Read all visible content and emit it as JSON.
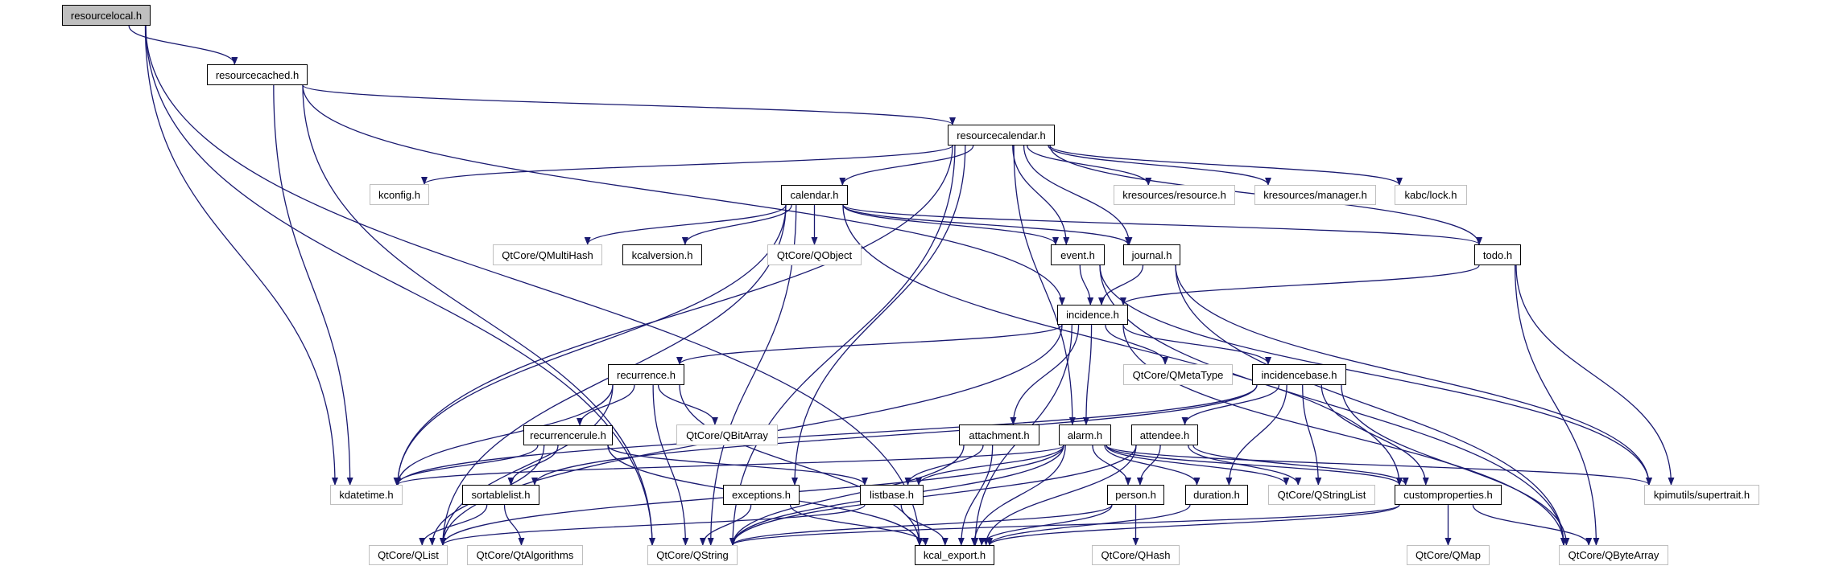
{
  "colors": {
    "edge": "#191970",
    "current_fill": "#bfbfbf",
    "external_border": "#bfbfbf",
    "documented_border": "#000000"
  },
  "nodes": [
    {
      "id": "resourcelocal",
      "label": "resourcelocal.h",
      "kind": "current"
    },
    {
      "id": "resourcecached",
      "label": "resourcecached.h",
      "kind": "documented"
    },
    {
      "id": "resourcecalendar",
      "label": "resourcecalendar.h",
      "kind": "documented"
    },
    {
      "id": "kconfig",
      "label": "kconfig.h",
      "kind": "external"
    },
    {
      "id": "calendar",
      "label": "calendar.h",
      "kind": "documented"
    },
    {
      "id": "kres_resource",
      "label": "kresources/resource.h",
      "kind": "external"
    },
    {
      "id": "kres_manager",
      "label": "kresources/manager.h",
      "kind": "external"
    },
    {
      "id": "kabc_lock",
      "label": "kabc/lock.h",
      "kind": "external"
    },
    {
      "id": "qmultihash",
      "label": "QtCore/QMultiHash",
      "kind": "external"
    },
    {
      "id": "kcalversion",
      "label": "kcalversion.h",
      "kind": "documented"
    },
    {
      "id": "qobject",
      "label": "QtCore/QObject",
      "kind": "external"
    },
    {
      "id": "event",
      "label": "event.h",
      "kind": "documented"
    },
    {
      "id": "journal",
      "label": "journal.h",
      "kind": "documented"
    },
    {
      "id": "todo",
      "label": "todo.h",
      "kind": "documented"
    },
    {
      "id": "incidence",
      "label": "incidence.h",
      "kind": "documented"
    },
    {
      "id": "recurrence",
      "label": "recurrence.h",
      "kind": "documented"
    },
    {
      "id": "qmetatype",
      "label": "QtCore/QMetaType",
      "kind": "external"
    },
    {
      "id": "incidencebase",
      "label": "incidencebase.h",
      "kind": "documented"
    },
    {
      "id": "recurrencerule",
      "label": "recurrencerule.h",
      "kind": "documented"
    },
    {
      "id": "qbitarray",
      "label": "QtCore/QBitArray",
      "kind": "external"
    },
    {
      "id": "attachment",
      "label": "attachment.h",
      "kind": "documented"
    },
    {
      "id": "alarm",
      "label": "alarm.h",
      "kind": "documented"
    },
    {
      "id": "attendee",
      "label": "attendee.h",
      "kind": "documented"
    },
    {
      "id": "kdatetime",
      "label": "kdatetime.h",
      "kind": "external"
    },
    {
      "id": "sortablelist",
      "label": "sortablelist.h",
      "kind": "documented"
    },
    {
      "id": "exceptions",
      "label": "exceptions.h",
      "kind": "documented"
    },
    {
      "id": "listbase",
      "label": "listbase.h",
      "kind": "documented"
    },
    {
      "id": "person",
      "label": "person.h",
      "kind": "documented"
    },
    {
      "id": "duration",
      "label": "duration.h",
      "kind": "documented"
    },
    {
      "id": "qstringlist",
      "label": "QtCore/QStringList",
      "kind": "external"
    },
    {
      "id": "customproperties",
      "label": "customproperties.h",
      "kind": "documented"
    },
    {
      "id": "supertrait",
      "label": "kpimutils/supertrait.h",
      "kind": "external"
    },
    {
      "id": "qlist",
      "label": "QtCore/QList",
      "kind": "external"
    },
    {
      "id": "qtalgorithms",
      "label": "QtCore/QtAlgorithms",
      "kind": "external"
    },
    {
      "id": "qstring",
      "label": "QtCore/QString",
      "kind": "external"
    },
    {
      "id": "kcal_export",
      "label": "kcal_export.h",
      "kind": "documented"
    },
    {
      "id": "qhash",
      "label": "QtCore/QHash",
      "kind": "external"
    },
    {
      "id": "qmap",
      "label": "QtCore/QMap",
      "kind": "external"
    },
    {
      "id": "qbytearray",
      "label": "QtCore/QByteArray",
      "kind": "external"
    }
  ],
  "edges": [
    [
      "resourcelocal",
      "resourcecached"
    ],
    [
      "resourcelocal",
      "kdatetime"
    ],
    [
      "resourcelocal",
      "qstring"
    ],
    [
      "resourcelocal",
      "kcal_export"
    ],
    [
      "resourcecached",
      "resourcecalendar"
    ],
    [
      "resourcecached",
      "kdatetime"
    ],
    [
      "resourcecached",
      "qstring"
    ],
    [
      "resourcecached",
      "incidence"
    ],
    [
      "resourcecalendar",
      "calendar"
    ],
    [
      "resourcecalendar",
      "kconfig"
    ],
    [
      "resourcecalendar",
      "kres_resource"
    ],
    [
      "resourcecalendar",
      "kres_manager"
    ],
    [
      "resourcecalendar",
      "kabc_lock"
    ],
    [
      "resourcecalendar",
      "todo"
    ],
    [
      "resourcecalendar",
      "event"
    ],
    [
      "resourcecalendar",
      "journal"
    ],
    [
      "resourcecalendar",
      "alarm"
    ],
    [
      "resourcecalendar",
      "exceptions"
    ],
    [
      "resourcecalendar",
      "kdatetime"
    ],
    [
      "resourcecalendar",
      "qstring"
    ],
    [
      "calendar",
      "qmultihash"
    ],
    [
      "calendar",
      "kcalversion"
    ],
    [
      "calendar",
      "qobject"
    ],
    [
      "calendar",
      "event"
    ],
    [
      "calendar",
      "journal"
    ],
    [
      "calendar",
      "todo"
    ],
    [
      "calendar",
      "kdatetime"
    ],
    [
      "calendar",
      "qlist"
    ],
    [
      "calendar",
      "qstring"
    ],
    [
      "calendar",
      "customproperties"
    ],
    [
      "event",
      "incidence"
    ],
    [
      "event",
      "supertrait"
    ],
    [
      "event",
      "qbytearray"
    ],
    [
      "journal",
      "incidence"
    ],
    [
      "journal",
      "supertrait"
    ],
    [
      "journal",
      "qbytearray"
    ],
    [
      "todo",
      "incidence"
    ],
    [
      "todo",
      "supertrait"
    ],
    [
      "todo",
      "qbytearray"
    ],
    [
      "incidence",
      "recurrence"
    ],
    [
      "incidence",
      "attachment"
    ],
    [
      "incidence",
      "alarm"
    ],
    [
      "incidence",
      "qmetatype"
    ],
    [
      "incidence",
      "incidencebase"
    ],
    [
      "incidence",
      "qlist"
    ],
    [
      "incidence",
      "kcal_export"
    ],
    [
      "incidence",
      "qbytearray"
    ],
    [
      "incidencebase",
      "kdatetime"
    ],
    [
      "incidencebase",
      "sortablelist"
    ],
    [
      "incidencebase",
      "attendee"
    ],
    [
      "incidencebase",
      "duration"
    ],
    [
      "incidencebase",
      "qstringlist"
    ],
    [
      "incidencebase",
      "customproperties"
    ],
    [
      "incidencebase",
      "qbytearray"
    ],
    [
      "recurrence",
      "recurrencerule"
    ],
    [
      "recurrence",
      "kdatetime"
    ],
    [
      "recurrence",
      "qlist"
    ],
    [
      "recurrence",
      "qstring"
    ],
    [
      "recurrence",
      "qbitarray"
    ],
    [
      "recurrence",
      "kcal_export"
    ],
    [
      "recurrencerule",
      "kdatetime"
    ],
    [
      "recurrencerule",
      "sortablelist"
    ],
    [
      "recurrencerule",
      "listbase"
    ],
    [
      "recurrencerule",
      "qlist"
    ],
    [
      "recurrencerule",
      "kcal_export"
    ],
    [
      "attachment",
      "listbase"
    ],
    [
      "attachment",
      "kcal_export"
    ],
    [
      "attachment",
      "qstring"
    ],
    [
      "alarm",
      "kdatetime"
    ],
    [
      "alarm",
      "listbase"
    ],
    [
      "alarm",
      "qstring"
    ],
    [
      "alarm",
      "kcal_export"
    ],
    [
      "alarm",
      "person"
    ],
    [
      "alarm",
      "duration"
    ],
    [
      "alarm",
      "qstringlist"
    ],
    [
      "alarm",
      "customproperties"
    ],
    [
      "alarm",
      "supertrait"
    ],
    [
      "alarm",
      "qlist"
    ],
    [
      "attendee",
      "person"
    ],
    [
      "attendee",
      "customproperties"
    ],
    [
      "attendee",
      "qstringlist"
    ],
    [
      "attendee",
      "qstring"
    ],
    [
      "attendee",
      "kcal_export"
    ],
    [
      "sortablelist",
      "qlist"
    ],
    [
      "sortablelist",
      "qtalgorithms"
    ],
    [
      "listbase",
      "qlist"
    ],
    [
      "listbase",
      "kcal_export"
    ],
    [
      "exceptions",
      "qstring"
    ],
    [
      "exceptions",
      "kcal_export"
    ],
    [
      "person",
      "qstring"
    ],
    [
      "person",
      "kcal_export"
    ],
    [
      "person",
      "qhash"
    ],
    [
      "duration",
      "kcal_export"
    ],
    [
      "customproperties",
      "qmap"
    ],
    [
      "customproperties",
      "qbytearray"
    ],
    [
      "customproperties",
      "qstring"
    ],
    [
      "customproperties",
      "kcal_export"
    ]
  ]
}
